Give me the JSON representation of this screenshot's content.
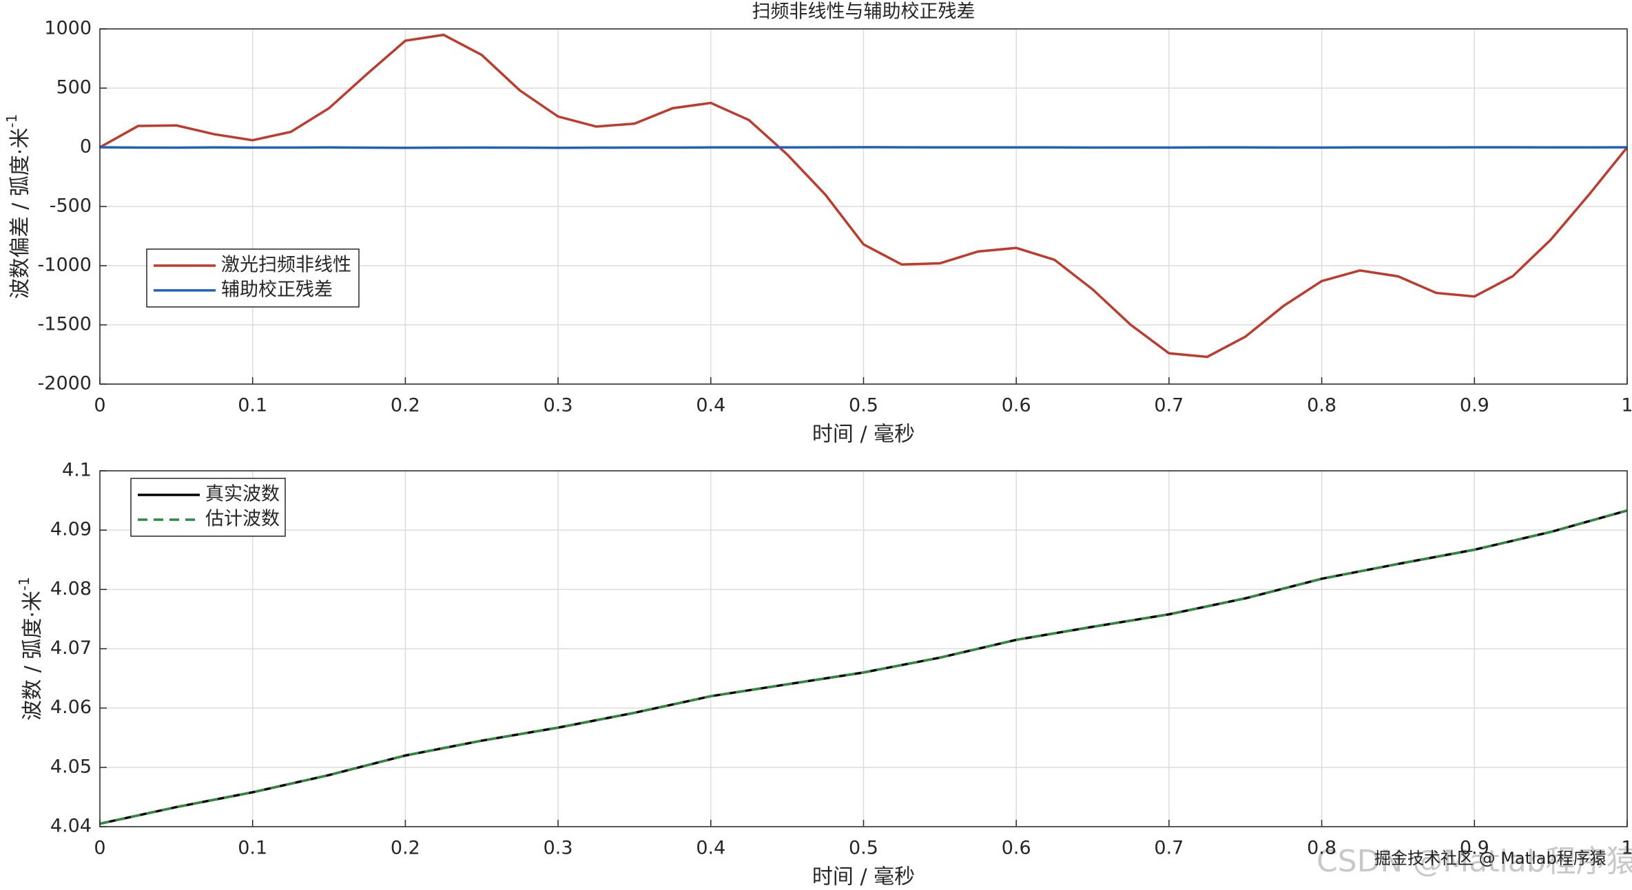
{
  "chart_data": [
    {
      "type": "line",
      "title": "扫频非线性与辅助校正残差",
      "xlabel": "时间 / 毫秒",
      "ylabel": "波数偏差 / 弧度·米",
      "ylabel_superscript": "-1",
      "x": [
        0,
        0.025,
        0.05,
        0.075,
        0.1,
        0.125,
        0.15,
        0.175,
        0.2,
        0.225,
        0.25,
        0.275,
        0.3,
        0.325,
        0.35,
        0.375,
        0.4,
        0.425,
        0.45,
        0.475,
        0.5,
        0.525,
        0.55,
        0.575,
        0.6,
        0.625,
        0.65,
        0.675,
        0.7,
        0.725,
        0.75,
        0.775,
        0.8,
        0.825,
        0.85,
        0.875,
        0.9,
        0.925,
        0.95,
        0.975,
        1
      ],
      "series": [
        {
          "name": "激光扫频非线性",
          "color": "#c0392b",
          "dash": false,
          "values": [
            0,
            180,
            185,
            110,
            60,
            130,
            330,
            620,
            900,
            950,
            780,
            480,
            260,
            175,
            200,
            330,
            375,
            230,
            -60,
            -400,
            -820,
            -990,
            -980,
            -880,
            -850,
            -950,
            -1200,
            -1500,
            -1740,
            -1770,
            -1600,
            -1340,
            -1130,
            -1040,
            -1090,
            -1230,
            -1260,
            -1090,
            -780,
            -400,
            0
          ]
        },
        {
          "name": "辅助校正残差",
          "color": "#1f5fbf",
          "dash": false,
          "values": [
            0,
            -2,
            -3,
            -1,
            -2,
            -2,
            -1,
            -3,
            -4,
            -3,
            -2,
            -3,
            -4,
            -3,
            -2,
            -2,
            -1,
            -1,
            -1,
            0,
            1,
            0,
            -1,
            -1,
            -1,
            -1,
            -2,
            -2,
            -2,
            -1,
            -1,
            -2,
            -2,
            -1,
            -1,
            -1,
            0,
            0,
            -1,
            -1,
            0
          ]
        }
      ],
      "xlim": [
        0,
        1
      ],
      "xticks": [
        0,
        0.1,
        0.2,
        0.3,
        0.4,
        0.5,
        0.6,
        0.7,
        0.8,
        0.9,
        1
      ],
      "ylim": [
        -2000,
        1000
      ],
      "yticks": [
        -2000,
        -1500,
        -1000,
        -500,
        0,
        500,
        1000
      ],
      "grid": true,
      "legend_position": "west"
    },
    {
      "type": "line",
      "xlabel": "时间 / 毫秒",
      "ylabel": "波数 / 弧度·米",
      "ylabel_superscript": "-1",
      "x": [
        0,
        0.05,
        0.1,
        0.15,
        0.2,
        0.25,
        0.3,
        0.35,
        0.4,
        0.45,
        0.5,
        0.55,
        0.6,
        0.65,
        0.7,
        0.75,
        0.8,
        0.85,
        0.9,
        0.95,
        1
      ],
      "series": [
        {
          "name": "真实波数",
          "color": "#000000",
          "dash": false,
          "values": [
            4.0405,
            4.0433,
            4.0458,
            4.0487,
            4.052,
            4.0545,
            4.0567,
            4.0592,
            4.062,
            4.064,
            4.066,
            4.0685,
            4.0715,
            4.0737,
            4.0758,
            4.0785,
            4.0818,
            4.0843,
            4.0867,
            4.0897,
            4.0933
          ]
        },
        {
          "name": "估计波数",
          "color": "#2e8b3e",
          "dash": true,
          "values": [
            4.0405,
            4.0433,
            4.0458,
            4.0487,
            4.052,
            4.0545,
            4.0567,
            4.0592,
            4.062,
            4.064,
            4.066,
            4.0685,
            4.0715,
            4.0737,
            4.0758,
            4.0785,
            4.0818,
            4.0843,
            4.0867,
            4.0897,
            4.0933
          ]
        }
      ],
      "xlim": [
        0,
        1
      ],
      "xticks": [
        0,
        0.1,
        0.2,
        0.3,
        0.4,
        0.5,
        0.6,
        0.7,
        0.8,
        0.9,
        1
      ],
      "ylim": [
        4.04,
        4.1
      ],
      "yticks": [
        4.04,
        4.05,
        4.06,
        4.07,
        4.08,
        4.09,
        4.1
      ],
      "grid": true,
      "legend_position": "northwest"
    }
  ],
  "watermark": {
    "csdn": "CSDN @Matlab程序猿",
    "juejin": "掘金技术社区 @ Matlab程序猿"
  }
}
